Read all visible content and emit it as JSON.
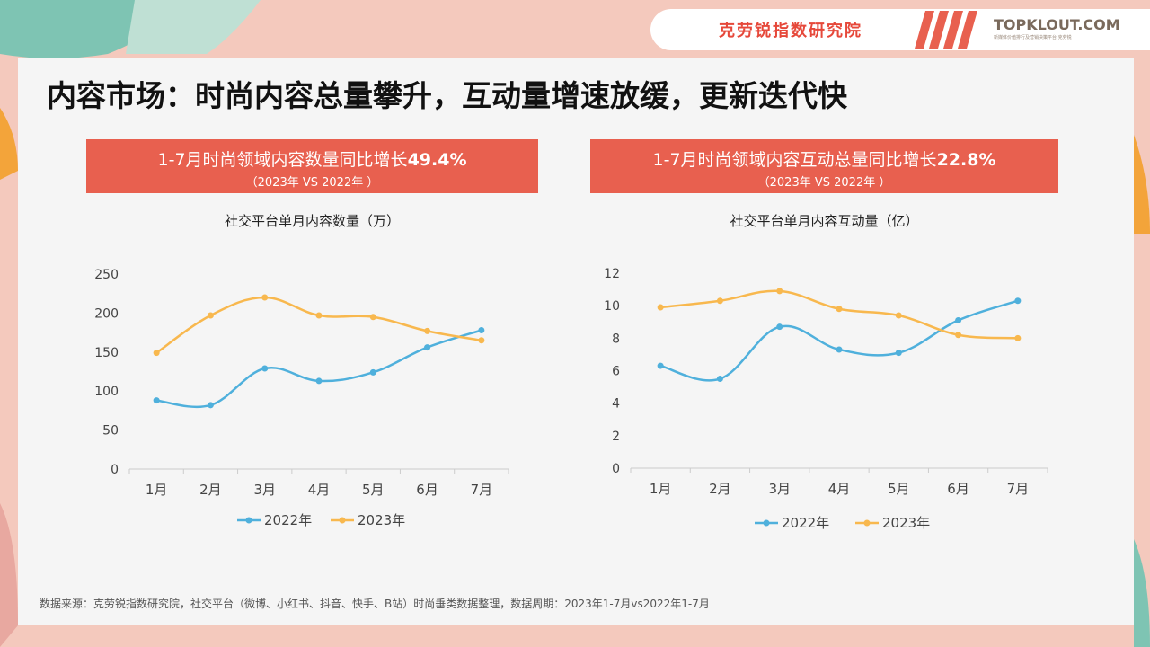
{
  "header": {
    "brand_cn": "克劳锐指数研究院",
    "brand_en": "TOPKLOUT.COM",
    "brand_sub": "新媒体价值排行及营销决策平台 克劳锐"
  },
  "page_title": "内容市场：时尚内容总量攀升，互动量增速放缓，更新迭代快",
  "footnote": "数据来源：克劳锐指数研究院，社交平台（微博、小红书、抖音、快手、B站）时尚垂类数据整理，数据周期：2023年1-7月vs2022年1-7月",
  "colors": {
    "series_2022": "#4fb0dc",
    "series_2023": "#f8b84e",
    "banner": "#e8604f"
  },
  "chart_data": [
    {
      "type": "line",
      "banner_text": "1-7月时尚领域内容数量同比增长",
      "banner_value": "49.4%",
      "banner_sub": "（2023年 VS 2022年 ）",
      "title": "社交平台单月内容数量（万）",
      "categories": [
        "1月",
        "2月",
        "3月",
        "4月",
        "5月",
        "6月",
        "7月"
      ],
      "yticks": [
        "0",
        "50",
        "100",
        "150",
        "200",
        "250"
      ],
      "ylim": [
        0,
        250
      ],
      "series": [
        {
          "name": "2022年",
          "values": [
            88,
            82,
            129,
            113,
            124,
            156,
            178
          ]
        },
        {
          "name": "2023年",
          "values": [
            149,
            197,
            220,
            197,
            195,
            177,
            165
          ]
        }
      ],
      "legend": "bottom"
    },
    {
      "type": "line",
      "banner_text": "1-7月时尚领域内容互动总量同比增长",
      "banner_value": "22.8%",
      "banner_sub": "（2023年 VS 2022年 ）",
      "title": "社交平台单月内容互动量（亿）",
      "categories": [
        "1月",
        "2月",
        "3月",
        "4月",
        "5月",
        "6月",
        "7月"
      ],
      "yticks": [
        "0",
        "2",
        "4",
        "6",
        "8",
        "10",
        "12"
      ],
      "ylim": [
        0,
        12
      ],
      "series": [
        {
          "name": "2022年",
          "values": [
            6.3,
            5.5,
            8.7,
            7.3,
            7.1,
            9.1,
            10.3
          ]
        },
        {
          "name": "2023年",
          "values": [
            9.9,
            10.3,
            10.9,
            9.8,
            9.4,
            8.2,
            8.0
          ]
        }
      ],
      "legend": "bottom"
    }
  ]
}
